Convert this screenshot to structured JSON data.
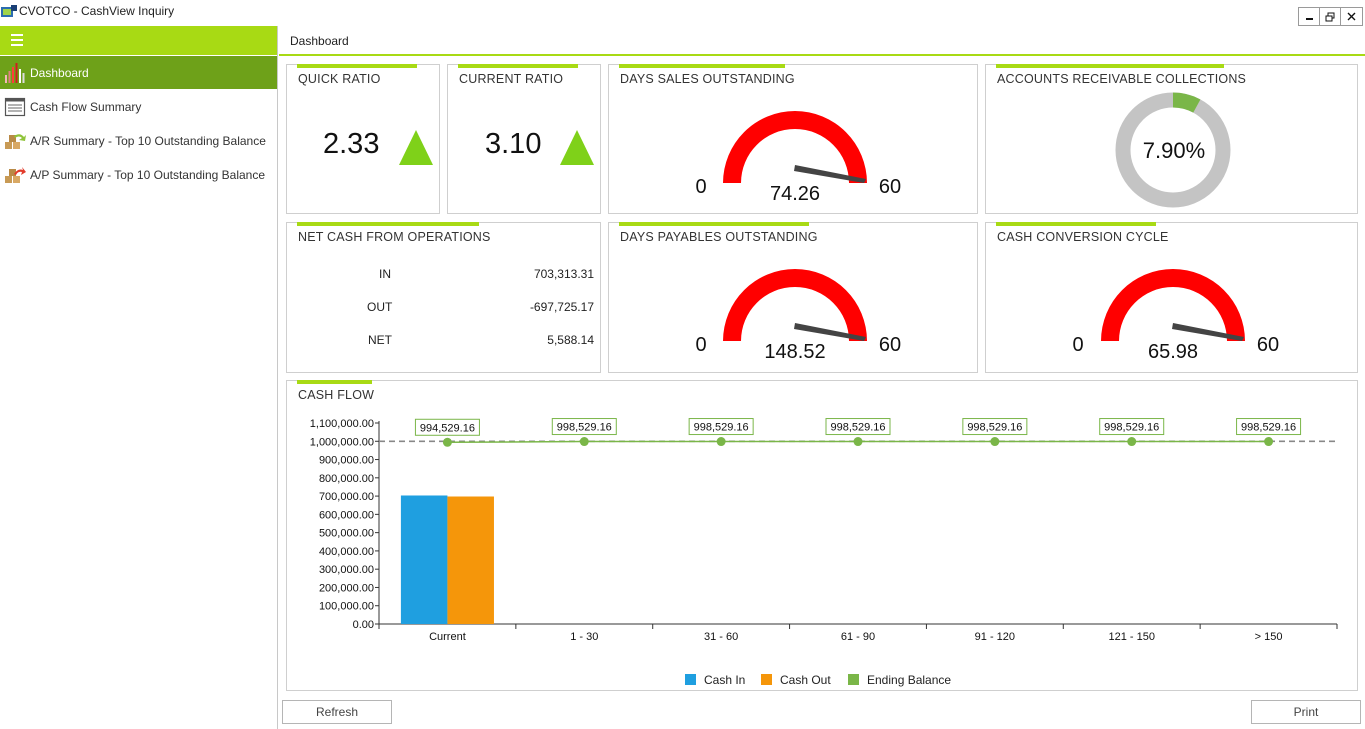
{
  "window": {
    "title": "CVOTCO - CashView Inquiry",
    "minimize_icon": "minimize-icon",
    "restore_icon": "restore-icon",
    "close_icon": "close-icon"
  },
  "sidebar": {
    "menu_icon": "hamburger-menu-icon",
    "items": [
      {
        "label": "Dashboard",
        "icon": "bar-chart-icon",
        "active": true
      },
      {
        "label": "Cash Flow Summary",
        "icon": "document-list-icon",
        "active": false
      },
      {
        "label": "A/R Summary - Top 10 Outstanding Balance",
        "icon": "boxes-arrow-in-icon",
        "active": false
      },
      {
        "label": "A/P Summary - Top 10 Outstanding Balance",
        "icon": "boxes-arrow-out-icon",
        "active": false
      }
    ]
  },
  "header": {
    "title": "Dashboard"
  },
  "colors": {
    "accent": "#a8da14",
    "nav_active": "#6ea119",
    "gauge": "#ff0000",
    "triangle": "#7fd119",
    "cash_in": "#1f9fe0",
    "cash_out": "#f5960a",
    "ending_balance": "#7ab648",
    "donut_track": "#c4c4c4"
  },
  "cards": {
    "quick_ratio": {
      "title": "QUICK RATIO",
      "value": "2.33",
      "trend_icon": "up-triangle-icon"
    },
    "current_ratio": {
      "title": "CURRENT RATIO",
      "value": "3.10",
      "trend_icon": "up-triangle-icon"
    },
    "dso": {
      "title": "DAYS SALES OUTSTANDING",
      "min": "0",
      "max": "60",
      "value": "74.26",
      "needle_fraction": 1.0
    },
    "ar_collections": {
      "title": "ACCOUNTS RECEIVABLE COLLECTIONS",
      "value": "7.90%",
      "fraction": 0.079
    },
    "net_cash": {
      "title": "NET CASH FROM OPERATIONS",
      "rows": [
        {
          "label": "IN",
          "value": "703,313.31"
        },
        {
          "label": "OUT",
          "value": "-697,725.17"
        },
        {
          "label": "NET",
          "value": "5,588.14"
        }
      ]
    },
    "dpo": {
      "title": "DAYS PAYABLES OUTSTANDING",
      "min": "0",
      "max": "60",
      "value": "148.52",
      "needle_fraction": 1.0
    },
    "ccc": {
      "title": "CASH CONVERSION CYCLE",
      "min": "0",
      "max": "60",
      "value": "65.98",
      "needle_fraction": 1.0
    }
  },
  "cash_flow": {
    "title": "CASH FLOW",
    "chart_data": {
      "type": "bar",
      "categories": [
        "Current",
        "1 - 30",
        "31 - 60",
        "61 - 90",
        "91 - 120",
        "121 - 150",
        "> 150"
      ],
      "series": [
        {
          "name": "Cash In",
          "type": "bar",
          "values": [
            703313.31,
            0,
            0,
            0,
            0,
            0,
            0
          ]
        },
        {
          "name": "Cash Out",
          "type": "bar",
          "values": [
            697725.17,
            0,
            0,
            0,
            0,
            0,
            0
          ]
        },
        {
          "name": "Ending Balance",
          "type": "line",
          "values": [
            994529.16,
            998529.16,
            998529.16,
            998529.16,
            998529.16,
            998529.16,
            998529.16
          ],
          "labels": [
            "994,529.16",
            "998,529.16",
            "998,529.16",
            "998,529.16",
            "998,529.16",
            "998,529.16",
            "998,529.16"
          ]
        }
      ],
      "ylim": [
        0,
        1100000
      ],
      "yticks": [
        "0.00",
        "100,000.00",
        "200,000.00",
        "300,000.00",
        "400,000.00",
        "500,000.00",
        "600,000.00",
        "700,000.00",
        "800,000.00",
        "900,000.00",
        "1,000,000.00",
        "1,100,000.00"
      ],
      "reference_line": 1000000,
      "legend_position": "bottom-center"
    }
  },
  "buttons": {
    "refresh": "Refresh",
    "print": "Print"
  }
}
